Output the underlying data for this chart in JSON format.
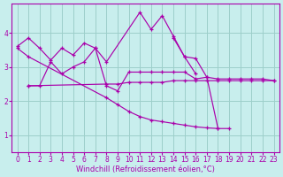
{
  "background_color": "#c8eeed",
  "grid_color": "#9dcfca",
  "line_color": "#aa00aa",
  "xlim": [
    -0.5,
    23.5
  ],
  "ylim": [
    0.5,
    4.85
  ],
  "yticks": [
    1,
    2,
    3,
    4
  ],
  "xticks": [
    0,
    1,
    2,
    3,
    4,
    5,
    6,
    7,
    8,
    9,
    10,
    11,
    12,
    13,
    14,
    15,
    16,
    17,
    18,
    19,
    20,
    21,
    22,
    23
  ],
  "xlabel": "Windchill (Refroidissement éolien,°C)",
  "xlabel_fontsize": 6.0,
  "tick_fontsize": 5.5,
  "line1_x": [
    0,
    1,
    2,
    3,
    4,
    5,
    6,
    7,
    8,
    11,
    12,
    13,
    14,
    15,
    16
  ],
  "line1_y": [
    3.6,
    3.85,
    3.55,
    3.2,
    3.55,
    3.35,
    3.7,
    3.55,
    3.15,
    4.6,
    4.1,
    4.5,
    3.9,
    3.3,
    2.8
  ],
  "line2_x": [
    1,
    2,
    3,
    4,
    5,
    6,
    7,
    8,
    9,
    10,
    11,
    12,
    13,
    14,
    15,
    16,
    17,
    18,
    19,
    20,
    21,
    22,
    23
  ],
  "line2_y": [
    2.45,
    2.45,
    3.15,
    2.8,
    3.0,
    3.15,
    3.55,
    2.45,
    2.3,
    2.85,
    2.85,
    2.85,
    2.85,
    2.85,
    2.85,
    2.65,
    2.7,
    2.65,
    2.65,
    2.65,
    2.65,
    2.65,
    2.6
  ],
  "line3_x": [
    0,
    1,
    8,
    9,
    10,
    11,
    12,
    13,
    14,
    15,
    16,
    17,
    18,
    19
  ],
  "line3_y": [
    3.55,
    3.3,
    2.1,
    1.9,
    1.7,
    1.55,
    1.45,
    1.4,
    1.35,
    1.3,
    1.25,
    1.22,
    1.2,
    1.2
  ],
  "line4_x": [
    1,
    8,
    9,
    10,
    11,
    12,
    13,
    14,
    15,
    16,
    17,
    18,
    19,
    20,
    21,
    22,
    23
  ],
  "line4_y": [
    2.45,
    2.5,
    2.5,
    2.55,
    2.55,
    2.55,
    2.55,
    2.6,
    2.6,
    2.6,
    2.6,
    2.6,
    2.6,
    2.6,
    2.6,
    2.6,
    2.6
  ],
  "line5_x": [
    14,
    15,
    16,
    17,
    18
  ],
  "line5_y": [
    3.85,
    3.3,
    3.25,
    2.7,
    1.2
  ]
}
